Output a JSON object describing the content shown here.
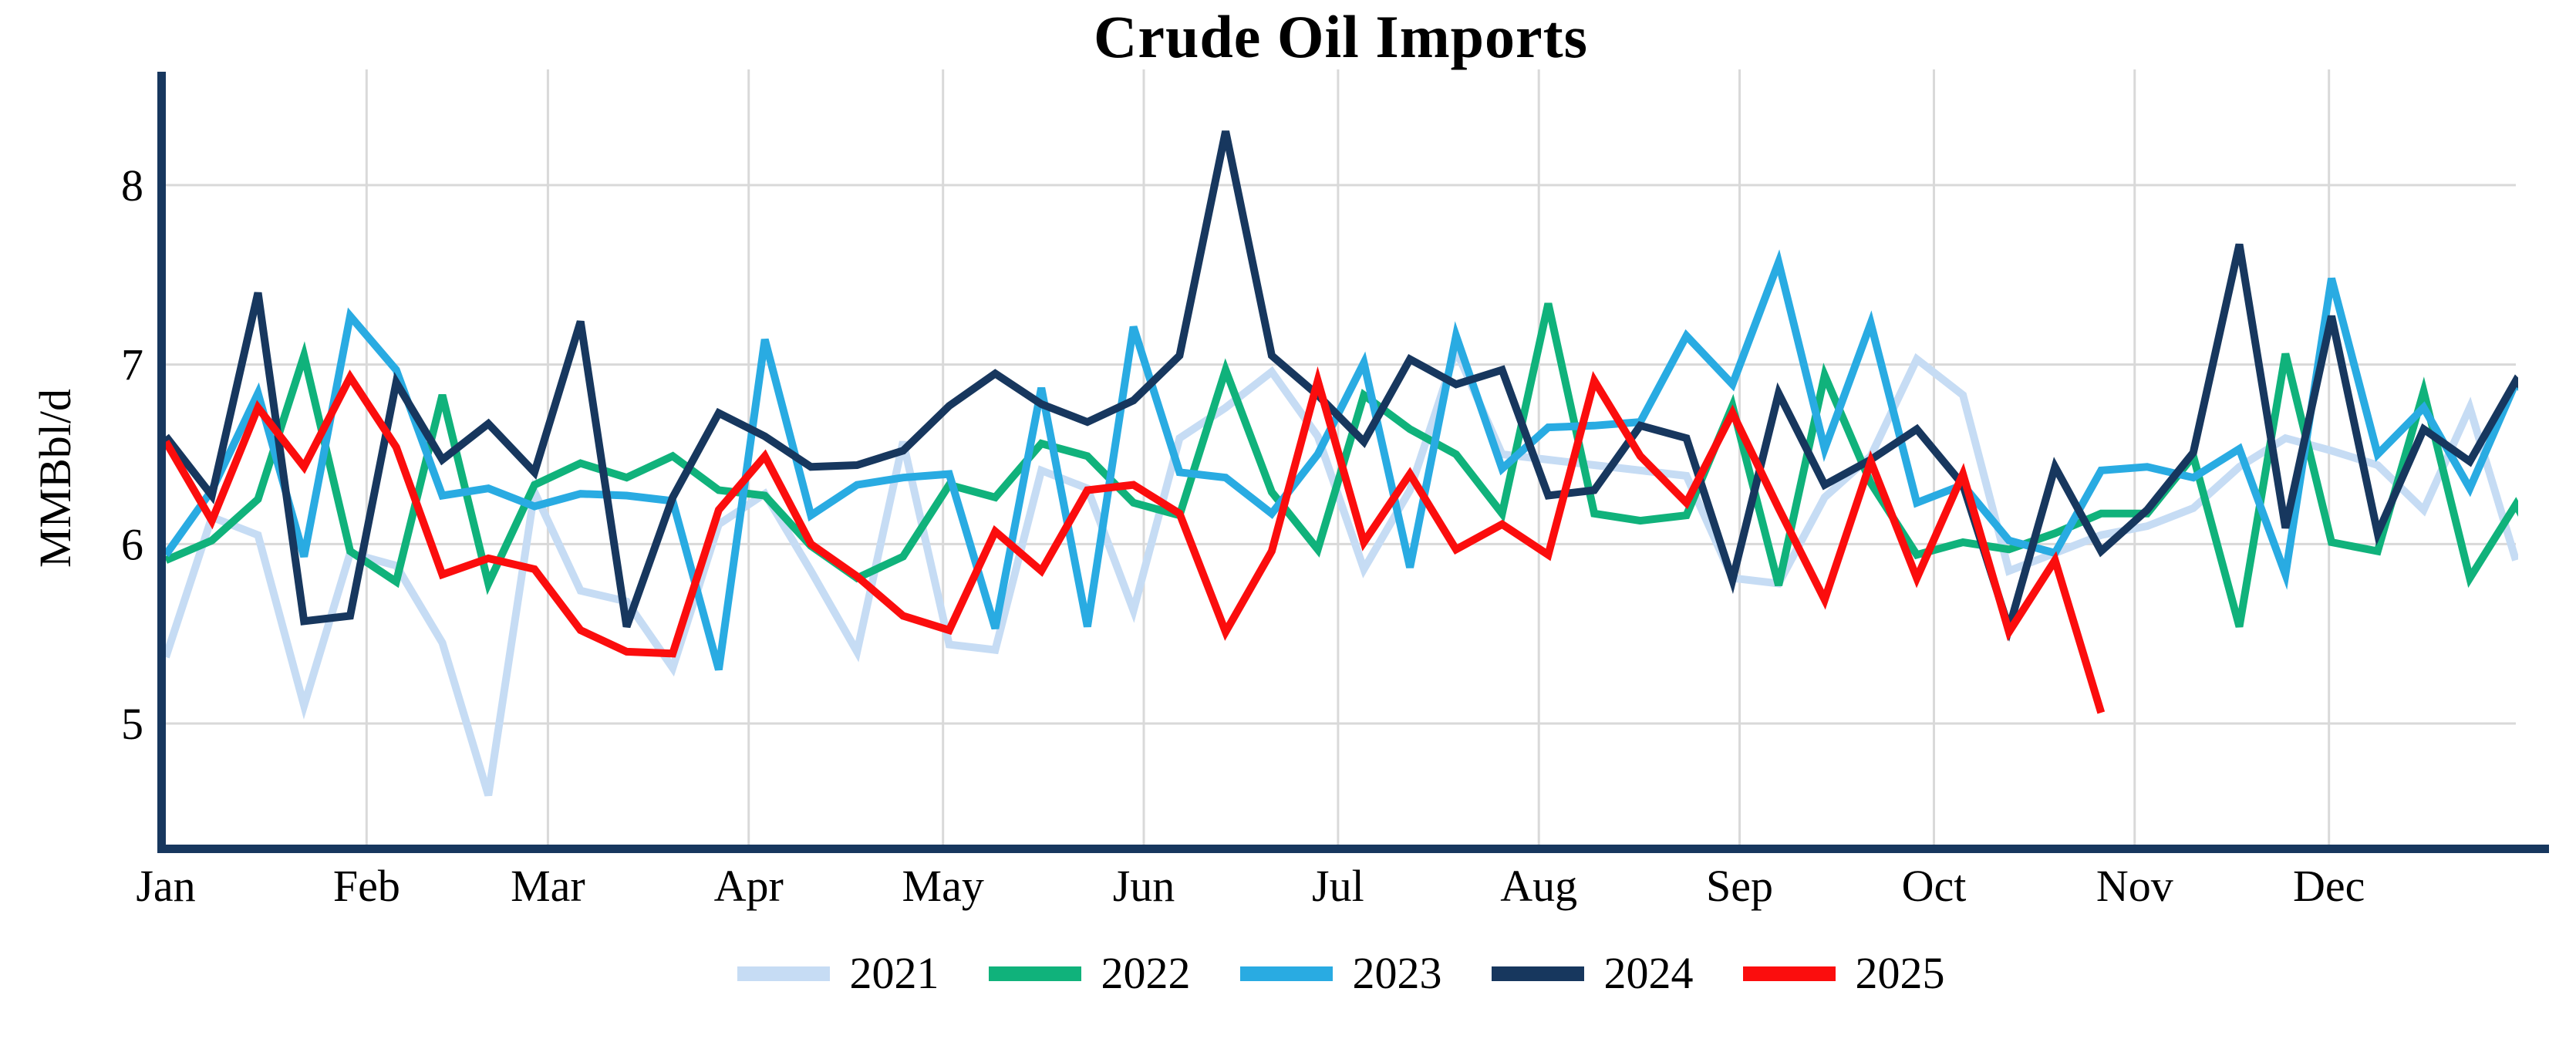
{
  "title": "Crude Oil Imports",
  "y_axis": {
    "label": "MMBbl/d",
    "ticks": [
      5,
      6,
      7,
      8
    ]
  },
  "x_axis": {
    "months": [
      "Jan",
      "Feb",
      "Mar",
      "Apr",
      "May",
      "Jun",
      "Jul",
      "Aug",
      "Sep",
      "Oct",
      "Nov",
      "Dec"
    ]
  },
  "legend": {
    "position": "bottom"
  },
  "colors": {
    "grid": "#D9D9D9",
    "axis": "#17375E",
    "text": "#000000",
    "background": "#FFFFFF"
  },
  "chart_data": {
    "type": "line",
    "title": "Crude Oil Imports",
    "xlabel": "",
    "ylabel": "MMBbl/d",
    "x_unit": "week-of-year",
    "ylim": [
      4.3,
      8.6
    ],
    "yticks": [
      5,
      6,
      7,
      8
    ],
    "grid": true,
    "legend_position": "bottom",
    "month_labels": [
      "Jan",
      "Feb",
      "Mar",
      "Apr",
      "May",
      "Jun",
      "Jul",
      "Aug",
      "Sep",
      "Oct",
      "Nov",
      "Dec"
    ],
    "month_start_days": [
      0,
      31,
      59,
      90,
      120,
      151,
      181,
      212,
      243,
      273,
      304,
      334
    ],
    "series": [
      {
        "name": "2021",
        "color": "#C6DCF4",
        "values": [
          5.37,
          6.15,
          6.05,
          5.1,
          5.95,
          5.88,
          5.45,
          4.6,
          6.29,
          5.74,
          5.68,
          5.31,
          6.11,
          6.28,
          5.85,
          5.4,
          6.57,
          5.44,
          5.41,
          6.41,
          6.31,
          5.63,
          6.59,
          6.76,
          6.96,
          6.6,
          5.86,
          6.3,
          7.08,
          6.5,
          6.47,
          6.44,
          6.41,
          6.38,
          5.81,
          5.78,
          6.26,
          6.49,
          7.03,
          6.83,
          5.85,
          5.95,
          6.05,
          6.1,
          6.2,
          6.43,
          6.59,
          6.52,
          6.44,
          6.19,
          6.76,
          5.91
        ]
      },
      {
        "name": "2022",
        "color": "#10B27B",
        "values": [
          5.91,
          6.02,
          6.25,
          7.05,
          5.96,
          5.79,
          6.83,
          5.78,
          6.33,
          6.45,
          6.37,
          6.49,
          6.3,
          6.27,
          5.99,
          5.81,
          5.93,
          6.33,
          6.26,
          6.56,
          6.49,
          6.23,
          6.16,
          6.97,
          6.29,
          5.97,
          6.83,
          6.64,
          6.5,
          6.17,
          7.34,
          6.17,
          6.13,
          6.16,
          6.77,
          5.77,
          6.94,
          6.34,
          5.94,
          6.01,
          5.97,
          6.06,
          6.17,
          6.17,
          6.49,
          5.54,
          7.06,
          6.01,
          5.96,
          6.85,
          5.81,
          6.22,
          5.75
        ]
      },
      {
        "name": "2023",
        "color": "#29ABE2",
        "values": [
          5.94,
          6.3,
          6.84,
          5.93,
          7.27,
          6.97,
          6.27,
          6.31,
          6.21,
          6.28,
          6.27,
          6.24,
          5.3,
          7.14,
          6.16,
          6.33,
          6.37,
          6.39,
          5.53,
          6.87,
          5.54,
          7.21,
          6.4,
          6.37,
          6.17,
          6.5,
          7.01,
          5.87,
          7.16,
          6.42,
          6.65,
          6.66,
          6.68,
          7.16,
          6.89,
          7.57,
          6.53,
          7.23,
          6.23,
          6.33,
          6.02,
          5.95,
          6.41,
          6.43,
          6.37,
          6.53,
          5.83,
          7.48,
          6.5,
          6.76,
          6.31,
          6.9,
          6.6
        ]
      },
      {
        "name": "2024",
        "color": "#17375E",
        "values": [
          6.6,
          6.27,
          7.4,
          5.57,
          5.6,
          6.9,
          6.47,
          6.67,
          6.4,
          7.24,
          5.54,
          6.26,
          6.73,
          6.6,
          6.43,
          6.44,
          6.52,
          6.77,
          6.95,
          6.78,
          6.68,
          6.8,
          7.05,
          8.3,
          7.05,
          6.83,
          6.57,
          7.03,
          6.89,
          6.97,
          6.27,
          6.3,
          6.66,
          6.59,
          5.8,
          6.84,
          6.33,
          6.47,
          6.64,
          6.33,
          5.53,
          6.43,
          5.96,
          6.19,
          6.51,
          7.67,
          6.09,
          7.27,
          6.06,
          6.64,
          6.46,
          6.91,
          6.65
        ]
      },
      {
        "name": "2025",
        "color": "#FB0D0D",
        "values": [
          6.57,
          6.13,
          6.76,
          6.43,
          6.93,
          6.54,
          5.83,
          5.92,
          5.86,
          5.52,
          5.4,
          5.39,
          6.19,
          6.49,
          6.0,
          5.82,
          5.6,
          5.52,
          6.07,
          5.85,
          6.3,
          6.33,
          6.17,
          5.51,
          5.96,
          6.91,
          6.01,
          6.39,
          5.97,
          6.11,
          5.94,
          6.91,
          6.49,
          6.23,
          6.73,
          6.2,
          5.69,
          6.46,
          5.81,
          6.39,
          5.51,
          5.91,
          5.06
        ]
      }
    ]
  }
}
